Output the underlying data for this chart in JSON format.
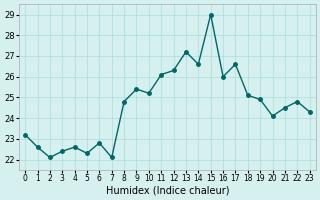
{
  "x": [
    0,
    1,
    2,
    3,
    4,
    5,
    6,
    7,
    8,
    9,
    10,
    11,
    12,
    13,
    14,
    15,
    16,
    17,
    18,
    19,
    20,
    21,
    22,
    23
  ],
  "y": [
    23.2,
    22.6,
    22.1,
    22.4,
    22.6,
    22.3,
    22.8,
    22.1,
    24.8,
    25.4,
    25.2,
    26.1,
    26.3,
    27.2,
    26.6,
    29.0,
    26.0,
    26.6,
    25.1,
    24.9,
    24.1,
    24.5,
    24.8,
    24.3
  ],
  "xlabel": "Humidex (Indice chaleur)",
  "ylim": [
    21.5,
    29.5
  ],
  "xlim": [
    -0.5,
    23.5
  ],
  "yticks": [
    22,
    23,
    24,
    25,
    26,
    27,
    28,
    29
  ],
  "xtick_labels": [
    "0",
    "1",
    "2",
    "3",
    "4",
    "5",
    "6",
    "7",
    "8",
    "9",
    "10",
    "11",
    "12",
    "13",
    "14",
    "15",
    "16",
    "17",
    "18",
    "19",
    "20",
    "21",
    "22",
    "23"
  ],
  "line_color": "#006666",
  "marker_color": "#006666",
  "bg_color": "#d6f0f0",
  "grid_color": "#aadddd",
  "axes_bg": "#d6f0f0"
}
